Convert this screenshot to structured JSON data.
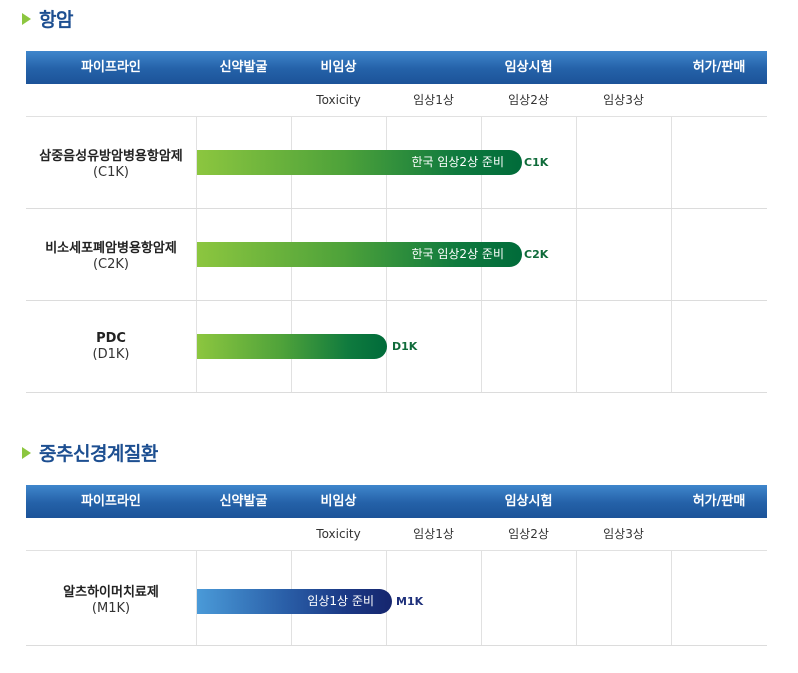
{
  "sections": [
    {
      "title": "항암",
      "headers": [
        "파이프라인",
        "신약발굴",
        "비임상",
        "임상시험",
        "허가/판매"
      ],
      "subheaders": [
        "Toxicity",
        "임상1상",
        "임상2상",
        "임상3상"
      ],
      "rows": [
        {
          "name": "삼중음성유방암병용항암제",
          "code": "(C1K)",
          "bar_label": "한국 임상2상 준비",
          "bar_code": "C1K"
        },
        {
          "name": "비소세포폐암병용항암제",
          "code": "(C2K)",
          "bar_label": "한국 임상2상 준비",
          "bar_code": "C2K"
        },
        {
          "name": "PDC",
          "code": "(D1K)",
          "bar_label": "",
          "bar_code": "D1K"
        }
      ]
    },
    {
      "title": "중추신경계질환",
      "headers": [
        "파이프라인",
        "신약발굴",
        "비임상",
        "임상시험",
        "허가/판매"
      ],
      "subheaders": [
        "Toxicity",
        "임상1상",
        "임상2상",
        "임상3상"
      ],
      "rows": [
        {
          "name": "알츠하이머치료제",
          "code": "(M1K)",
          "bar_label": "임상1상 준비",
          "bar_code": "M1K"
        }
      ]
    }
  ],
  "colors": {
    "title": "#1d4f91",
    "header": "#2461a8",
    "bar_green": "#0f7a3e",
    "bar_blue": "#16266e",
    "accent_triangle": "#8cc63f"
  }
}
